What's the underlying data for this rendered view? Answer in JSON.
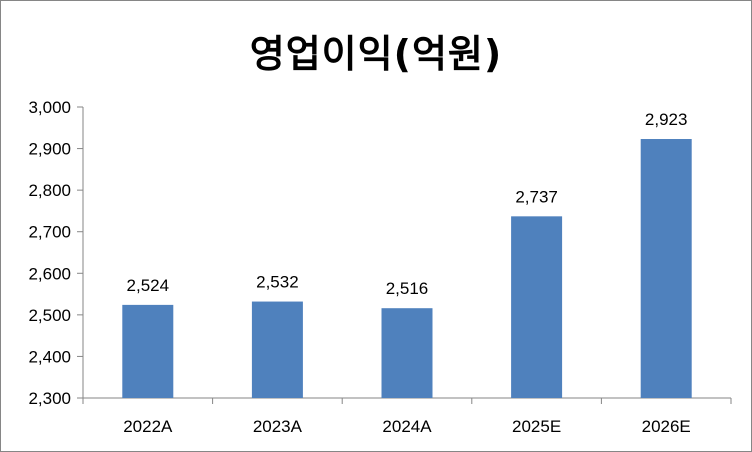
{
  "chart_data": {
    "type": "bar",
    "title": "영업이익(억원)",
    "categories": [
      "2022A",
      "2023A",
      "2024A",
      "2025E",
      "2026E"
    ],
    "values": [
      2524,
      2532,
      2516,
      2737,
      2923
    ],
    "value_labels": [
      "2,524",
      "2,532",
      "2,516",
      "2,737",
      "2,923"
    ],
    "ylim": [
      2300,
      3000
    ],
    "yticks": [
      2300,
      2400,
      2500,
      2600,
      2700,
      2800,
      2900,
      3000
    ],
    "ytick_labels": [
      "2,300",
      "2,400",
      "2,500",
      "2,600",
      "2,700",
      "2,800",
      "2,900",
      "3,000"
    ],
    "grid": false,
    "legend": "none",
    "bar_color": "#4F81BD"
  }
}
